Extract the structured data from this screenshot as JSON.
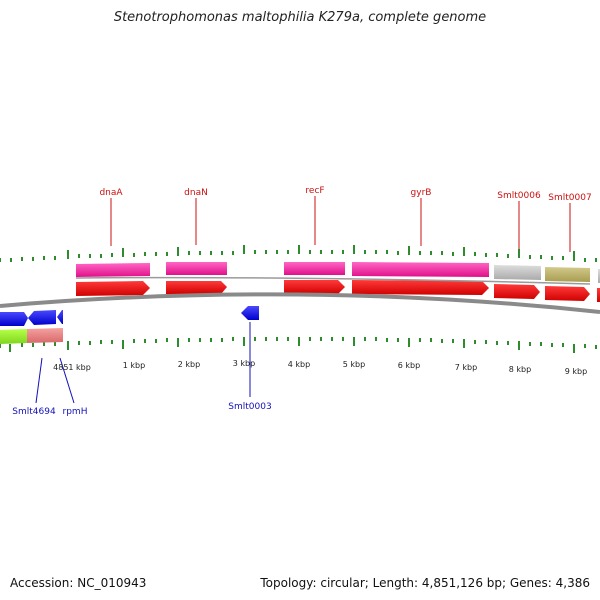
{
  "title": "Stenotrophomonas maltophilia K279a, complete genome",
  "footer": {
    "accession": "Accession: NC_010943",
    "summary": "Topology: circular; Length: 4,851,126 bp; Genes: 4,386"
  },
  "colors": {
    "backbone": "#888888",
    "tick": "#2e8b2e",
    "forward_cds": "#ee1111",
    "reverse_cds": "#1111dd",
    "top_label": "#cc1111",
    "bottom_label": "#1111bb"
  },
  "scale_labels": [
    "4851 kbp",
    "1 kbp",
    "2 kbp",
    "3 kbp",
    "4 kbp",
    "5 kbp",
    "6 kbp",
    "7 kbp",
    "8 kbp",
    "9 kbp"
  ],
  "top_gene_labels": [
    "dnaA",
    "dnaN",
    "recF",
    "gyrB",
    "Smlt0006",
    "Smlt0007"
  ],
  "bottom_gene_labels": [
    "Smlt4694",
    "rpmH",
    "Smlt0003"
  ]
}
